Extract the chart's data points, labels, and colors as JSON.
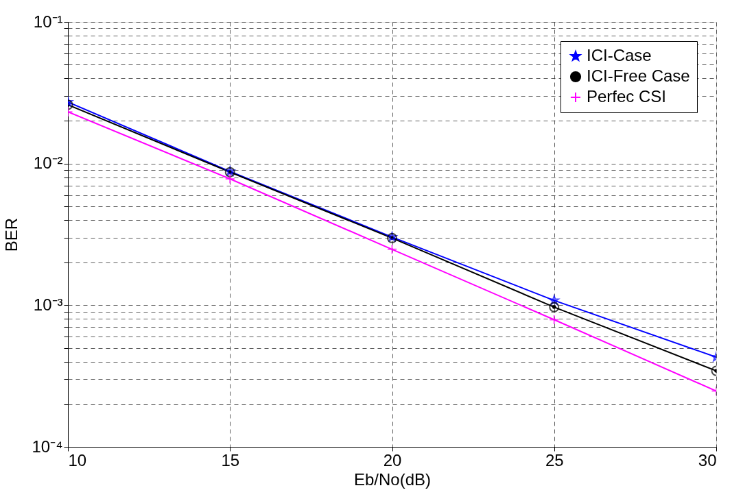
{
  "chart_data": {
    "type": "line",
    "xlabel": "Eb/No(dB)",
    "ylabel": "BER",
    "log": "y",
    "grid": true,
    "legend": "top right",
    "line_style": "solid",
    "x": [
      10,
      15,
      20,
      25,
      30
    ],
    "xlim": [
      10,
      30
    ],
    "xticks": [
      10,
      15,
      20,
      25,
      30
    ],
    "ylim": [
      0.0001,
      0.1
    ],
    "yticks": [
      {
        "value": 0.0001,
        "label": "10⁻⁴"
      },
      {
        "value": 0.0002,
        "label": null
      },
      {
        "value": 0.0003,
        "label": null
      },
      {
        "value": 0.0004,
        "label": null
      },
      {
        "value": 0.0005,
        "label": null
      },
      {
        "value": 0.0006,
        "label": null
      },
      {
        "value": 0.0007,
        "label": null
      },
      {
        "value": 0.0008,
        "label": null
      },
      {
        "value": 0.0009,
        "label": null
      },
      {
        "value": 0.001,
        "label": "10⁻³"
      },
      {
        "value": 0.002,
        "label": null
      },
      {
        "value": 0.003,
        "label": null
      },
      {
        "value": 0.004,
        "label": null
      },
      {
        "value": 0.005,
        "label": null
      },
      {
        "value": 0.006,
        "label": null
      },
      {
        "value": 0.007,
        "label": null
      },
      {
        "value": 0.008,
        "label": null
      },
      {
        "value": 0.009,
        "label": null
      },
      {
        "value": 0.01,
        "label": "10⁻²"
      },
      {
        "value": 0.02,
        "label": null
      },
      {
        "value": 0.03,
        "label": null
      },
      {
        "value": 0.04,
        "label": null
      },
      {
        "value": 0.05,
        "label": null
      },
      {
        "value": 0.06,
        "label": null
      },
      {
        "value": 0.07,
        "label": null
      },
      {
        "value": 0.08,
        "label": null
      },
      {
        "value": 0.09,
        "label": null
      },
      {
        "value": 0.1,
        "label": "10⁻¹"
      }
    ],
    "series": [
      {
        "name": "ICI-Case",
        "color": "#0000ff",
        "marker": "star",
        "values": [
          0.0272,
          0.0088,
          0.00303,
          0.00108,
          0.00043
        ]
      },
      {
        "name": "ICI-Free Case",
        "color": "#000000",
        "marker": "circle",
        "values": [
          0.026,
          0.0087,
          0.00298,
          0.00097,
          0.000344
        ]
      },
      {
        "name": "Perfec CSI",
        "color": "#ff00ff",
        "marker": "cross",
        "values": [
          0.0232,
          0.0078,
          0.00248,
          0.00079,
          0.000248
        ]
      }
    ]
  }
}
